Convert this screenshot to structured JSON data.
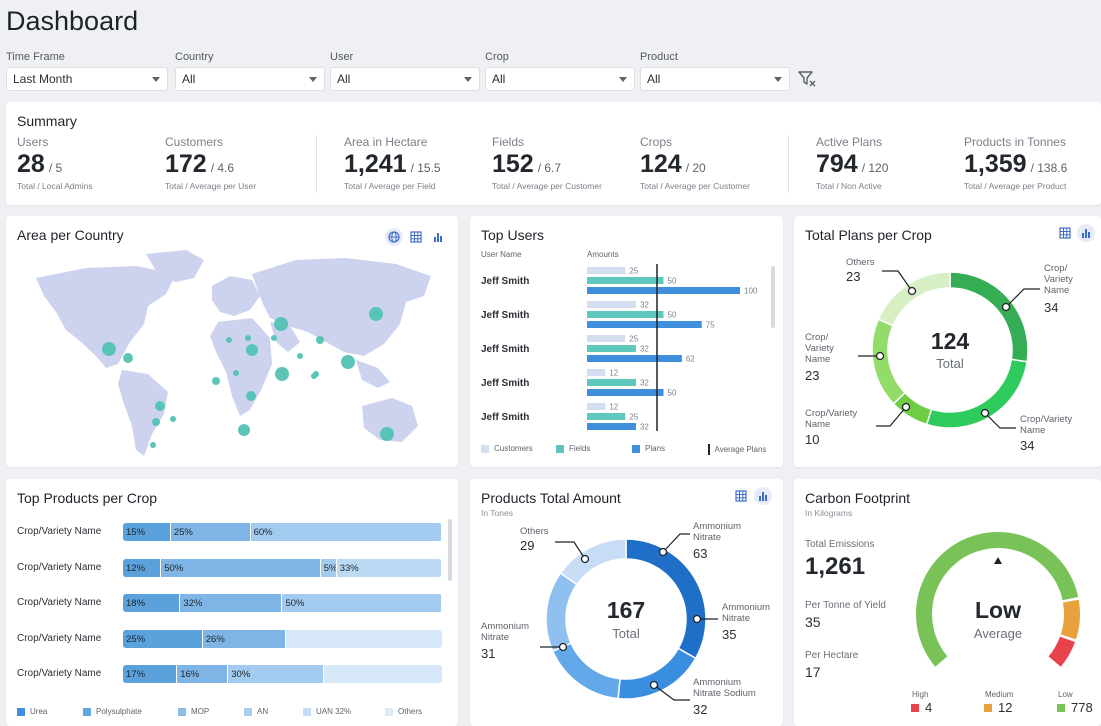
{
  "page_title": "Dashboard",
  "filters": [
    {
      "label": "Time Frame",
      "value": "Last Month"
    },
    {
      "label": "Country",
      "value": "All"
    },
    {
      "label": "User",
      "value": "All"
    },
    {
      "label": "Crop",
      "value": "All"
    },
    {
      "label": "Product",
      "value": "All"
    }
  ],
  "summary": {
    "title": "Summary",
    "kpis": [
      {
        "label": "Users",
        "value": "28",
        "sub": "/ 5",
        "caption": "Total / Local Admins"
      },
      {
        "label": "Customers",
        "value": "172",
        "sub": "/ 4.6",
        "caption": "Total / Average per User"
      },
      {
        "label": "Area in Hectare",
        "value": "1,241",
        "sub": "/ 15.5",
        "caption": "Total / Average per Field"
      },
      {
        "label": "Fields",
        "value": "152",
        "sub": "/ 6.7",
        "caption": "Total / Average per Customer"
      },
      {
        "label": "Crops",
        "value": "124",
        "sub": "/ 20",
        "caption": "Total / Average per Customer"
      },
      {
        "label": "Active Plans",
        "value": "794",
        "sub": "/ 120",
        "caption": "Total / Non Active"
      },
      {
        "label": "Products in Tonnes",
        "value": "1,359",
        "sub": "/ 138.6",
        "caption": "Total / Average per Product"
      }
    ]
  },
  "area_per_country": {
    "title": "Area per Country"
  },
  "top_users": {
    "title": "Top Users",
    "col_user": "User Name",
    "col_amounts": "Amounts",
    "rows": [
      {
        "name": "Jeff Smith",
        "customers": 25,
        "fields": 50,
        "plans": 100
      },
      {
        "name": "Jeff Smith",
        "customers": 32,
        "fields": 50,
        "plans": 75
      },
      {
        "name": "Jeff Smith",
        "customers": 25,
        "fields": 32,
        "plans": 62
      },
      {
        "name": "Jeff Smith",
        "customers": 12,
        "fields": 32,
        "plans": 50
      },
      {
        "name": "Jeff Smith",
        "customers": 12,
        "fields": 25,
        "plans": 32
      }
    ],
    "legend": [
      "Customers",
      "Fields",
      "Plans",
      "Average Plans"
    ],
    "colors": {
      "customers": "#d3dff0",
      "fields": "#5ec8bd",
      "plans": "#3f8fdc"
    }
  },
  "plans_per_crop": {
    "title": "Total Plans per Crop",
    "center_value": "124",
    "center_label": "Total",
    "slices": [
      {
        "label": "Crop/\nVariety\nName",
        "value": "34",
        "color": "#35ad55"
      },
      {
        "label": "Crop/Variety\nName",
        "value": "34",
        "color": "#2fca5c"
      },
      {
        "label": "Crop/Variety\nName",
        "value": "10",
        "color": "#6fcd45"
      },
      {
        "label": "Crop/\nVariety\nName",
        "value": "23",
        "color": "#94dc6a"
      },
      {
        "label": "Others",
        "value": "23",
        "color": "#d6efc4"
      }
    ]
  },
  "top_products": {
    "title": "Top Products per Crop",
    "rows": [
      {
        "name": "Crop/Variety Name",
        "segments": [
          15,
          25,
          60
        ]
      },
      {
        "name": "Crop/Variety Name",
        "segments": [
          12,
          50,
          5,
          33
        ]
      },
      {
        "name": "Crop/Variety Name",
        "segments": [
          18,
          32,
          50
        ]
      },
      {
        "name": "Crop/Variety Name",
        "segments": [
          25,
          26
        ]
      },
      {
        "name": "Crop/Variety Name",
        "segments": [
          17,
          16,
          30
        ]
      }
    ],
    "seg_colors": [
      "#5ba1dc",
      "#7fb5e6",
      "#a2cbef",
      "#bcdaf4"
    ],
    "legend": [
      "Urea",
      "Polysulphate",
      "MOP",
      "AN",
      "UAN 32%",
      "Others"
    ],
    "legend_colors": [
      "#3f8fdc",
      "#62a6e2",
      "#8bbde9",
      "#a8cef0",
      "#c2ddf5",
      "#dbeaf8"
    ]
  },
  "products_total": {
    "title": "Products Total Amount",
    "subtitle": "In Tones",
    "center_value": "167",
    "center_label": "Total",
    "slices": [
      {
        "label": "Ammonium\nNitrate",
        "value": "63",
        "color": "#1f6fc9"
      },
      {
        "label": "Ammonium\nNitrate",
        "value": "35",
        "color": "#3a8ee0"
      },
      {
        "label": "Ammonium\nNitrate Sodium",
        "value": "32",
        "color": "#63a8e8"
      },
      {
        "label": "Ammonium\nNitrate",
        "value": "31",
        "color": "#8fc0ef"
      },
      {
        "label": "Others",
        "value": "29",
        "color": "#c6ddf5"
      }
    ]
  },
  "carbon": {
    "title": "Carbon Footprint",
    "subtitle": "In Kilograms",
    "total_label": "Total Emissions",
    "total_value": "1,261",
    "per_tonne_label": "Per Tonne of Yield",
    "per_tonne_value": "35",
    "per_hectare_label": "Per Hectare",
    "per_hectare_value": "17",
    "gauge_value": "Low",
    "gauge_label": "Average",
    "legend": [
      {
        "label": "High",
        "value": "4",
        "color": "#e8434b"
      },
      {
        "label": "Medium",
        "value": "12",
        "color": "#e9a23b"
      },
      {
        "label": "Low",
        "value": "778",
        "color": "#78c257"
      }
    ]
  },
  "map_colors": {
    "land": "#cdd3ee",
    "dot": "#53c2b4"
  }
}
